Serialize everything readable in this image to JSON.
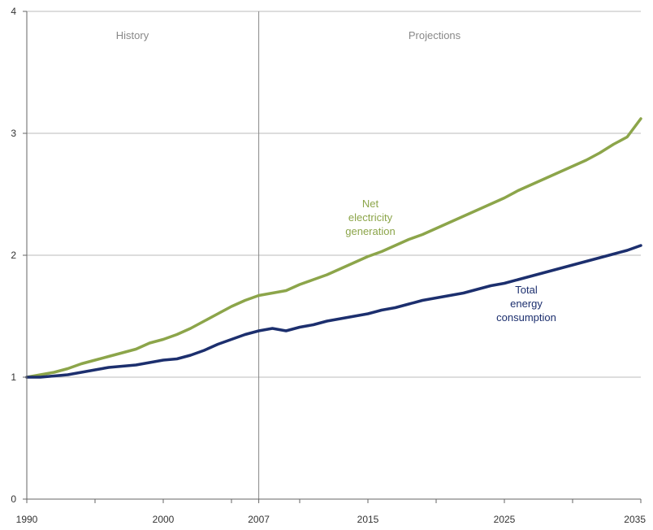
{
  "chart_data": {
    "type": "line",
    "title": "",
    "xlabel": "",
    "ylabel": "",
    "xlim": [
      1990,
      2035
    ],
    "ylim": [
      0,
      4
    ],
    "x_ticks": [
      "1990",
      "2000",
      "2007",
      "2015",
      "2025",
      "2035"
    ],
    "y_ticks": [
      "0",
      "1",
      "2",
      "3",
      "4"
    ],
    "grid": "horizontal",
    "divider_year": 2007,
    "region_labels": {
      "left": "History",
      "right": "Projections"
    },
    "colors": {
      "electricity": "#8ca54a",
      "energy": "#1c2f6e",
      "grid": "#bbbbbb",
      "divider": "#888888"
    },
    "x": [
      1990,
      1991,
      1992,
      1993,
      1994,
      1995,
      1996,
      1997,
      1998,
      1999,
      2000,
      2001,
      2002,
      2003,
      2004,
      2005,
      2006,
      2007,
      2008,
      2009,
      2010,
      2011,
      2012,
      2013,
      2014,
      2015,
      2016,
      2017,
      2018,
      2019,
      2020,
      2021,
      2022,
      2023,
      2024,
      2025,
      2026,
      2027,
      2028,
      2029,
      2030,
      2031,
      2032,
      2033,
      2034,
      2035
    ],
    "series": [
      {
        "name": "Net electricity generation",
        "label_lines": [
          "Net",
          "electricity",
          "generation"
        ],
        "values": [
          1.0,
          1.02,
          1.04,
          1.07,
          1.11,
          1.14,
          1.17,
          1.2,
          1.23,
          1.28,
          1.31,
          1.35,
          1.4,
          1.46,
          1.52,
          1.58,
          1.63,
          1.67,
          1.69,
          1.71,
          1.76,
          1.8,
          1.84,
          1.89,
          1.94,
          1.99,
          2.03,
          2.08,
          2.13,
          2.17,
          2.22,
          2.27,
          2.32,
          2.37,
          2.42,
          2.47,
          2.53,
          2.58,
          2.63,
          2.68,
          2.73,
          2.78,
          2.84,
          2.91,
          2.97,
          3.12
        ]
      },
      {
        "name": "Total energy consumption",
        "label_lines": [
          "Total",
          "energy",
          "consumption"
        ],
        "values": [
          1.0,
          1.0,
          1.01,
          1.02,
          1.04,
          1.06,
          1.08,
          1.09,
          1.1,
          1.12,
          1.14,
          1.15,
          1.18,
          1.22,
          1.27,
          1.31,
          1.35,
          1.38,
          1.4,
          1.38,
          1.41,
          1.43,
          1.46,
          1.48,
          1.5,
          1.52,
          1.55,
          1.57,
          1.6,
          1.63,
          1.65,
          1.67,
          1.69,
          1.72,
          1.75,
          1.77,
          1.8,
          1.83,
          1.86,
          1.89,
          1.92,
          1.95,
          1.98,
          2.01,
          2.04,
          2.08
        ]
      }
    ]
  }
}
